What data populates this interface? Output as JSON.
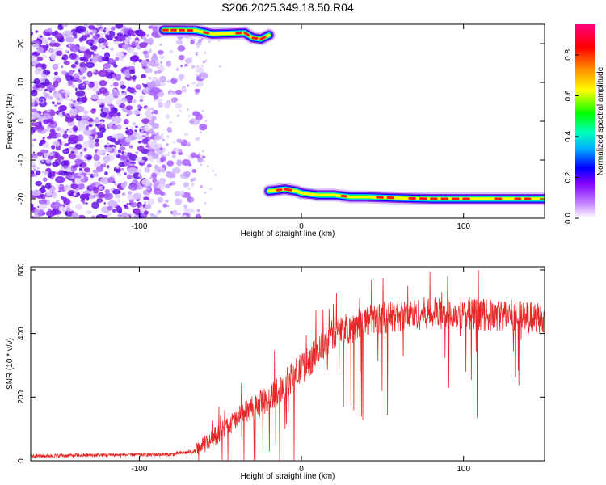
{
  "title": "S206.2025.349.18.50.R04",
  "chart_data": [
    {
      "type": "heatmap",
      "xlabel": "Height of straight line (km)",
      "ylabel": "Frequency (Hz)",
      "xlim": [
        -167,
        150
      ],
      "ylim": [
        -25,
        25
      ],
      "xticks": [
        -100,
        0,
        100
      ],
      "yticks": [
        -20,
        -10,
        0,
        10,
        20
      ],
      "xtick_labels": [
        "-100",
        "0",
        "100"
      ],
      "ytick_labels": [
        "-20",
        "-10",
        "0",
        "10",
        "20"
      ],
      "colorbar": {
        "label": "Normalized spectral amplitude",
        "range": [
          0.0,
          0.95
        ],
        "ticks": [
          0.0,
          0.2,
          0.4,
          0.6,
          0.8
        ],
        "tick_labels": [
          "0.0",
          "0.2",
          "0.4",
          "0.6",
          "0.8"
        ],
        "colormap": [
          "#ffffff",
          "#a000ff",
          "#0000ff",
          "#00e0ff",
          "#00ff40",
          "#ffff00",
          "#ff8000",
          "#ff0000",
          "#ff0080"
        ]
      },
      "ridges": [
        {
          "segments": [
            [
              -85,
              23.5
            ],
            [
              -75,
              23.5
            ],
            [
              -65,
              23.4
            ],
            [
              -55,
              22.5
            ],
            [
              -45,
              22.6
            ],
            [
              -35,
              22.8
            ],
            [
              -30,
              21.5
            ],
            [
              -25,
              21.2
            ],
            [
              -20,
              22.2
            ]
          ]
        },
        {
          "segments": [
            [
              -20,
              -18
            ],
            [
              -10,
              -17.5
            ],
            [
              -3,
              -18
            ],
            [
              0,
              -18.5
            ],
            [
              10,
              -19
            ],
            [
              20,
              -19
            ],
            [
              30,
              -19.5
            ],
            [
              40,
              -19.5
            ],
            [
              60,
              -19.8
            ],
            [
              80,
              -20
            ],
            [
              100,
              -20
            ],
            [
              120,
              -20
            ],
            [
              150,
              -20
            ]
          ]
        }
      ],
      "noise_region_x": [
        -167,
        -70
      ]
    },
    {
      "type": "line",
      "xlabel": "Height of straight line (km)",
      "ylabel": "SNR (10 * v/v)",
      "xlim": [
        -167,
        150
      ],
      "ylim": [
        0,
        610
      ],
      "xticks": [
        -100,
        0,
        100
      ],
      "yticks": [
        0,
        200,
        400,
        600
      ],
      "xtick_labels": [
        "-100",
        "0",
        "100"
      ],
      "ytick_labels": [
        "0",
        "200",
        "400",
        "600"
      ],
      "color": "#e82828",
      "envelope": {
        "x": [
          -167,
          -120,
          -80,
          -65,
          -55,
          -45,
          -35,
          -20,
          -10,
          0,
          10,
          20,
          30,
          40,
          50,
          60,
          70,
          80,
          90,
          100,
          110,
          120,
          130,
          140,
          150
        ],
        "y": [
          15,
          18,
          20,
          30,
          70,
          110,
          150,
          195,
          240,
          290,
          340,
          400,
          420,
          440,
          450,
          455,
          460,
          465,
          460,
          465,
          460,
          455,
          460,
          450,
          450
        ]
      }
    }
  ]
}
